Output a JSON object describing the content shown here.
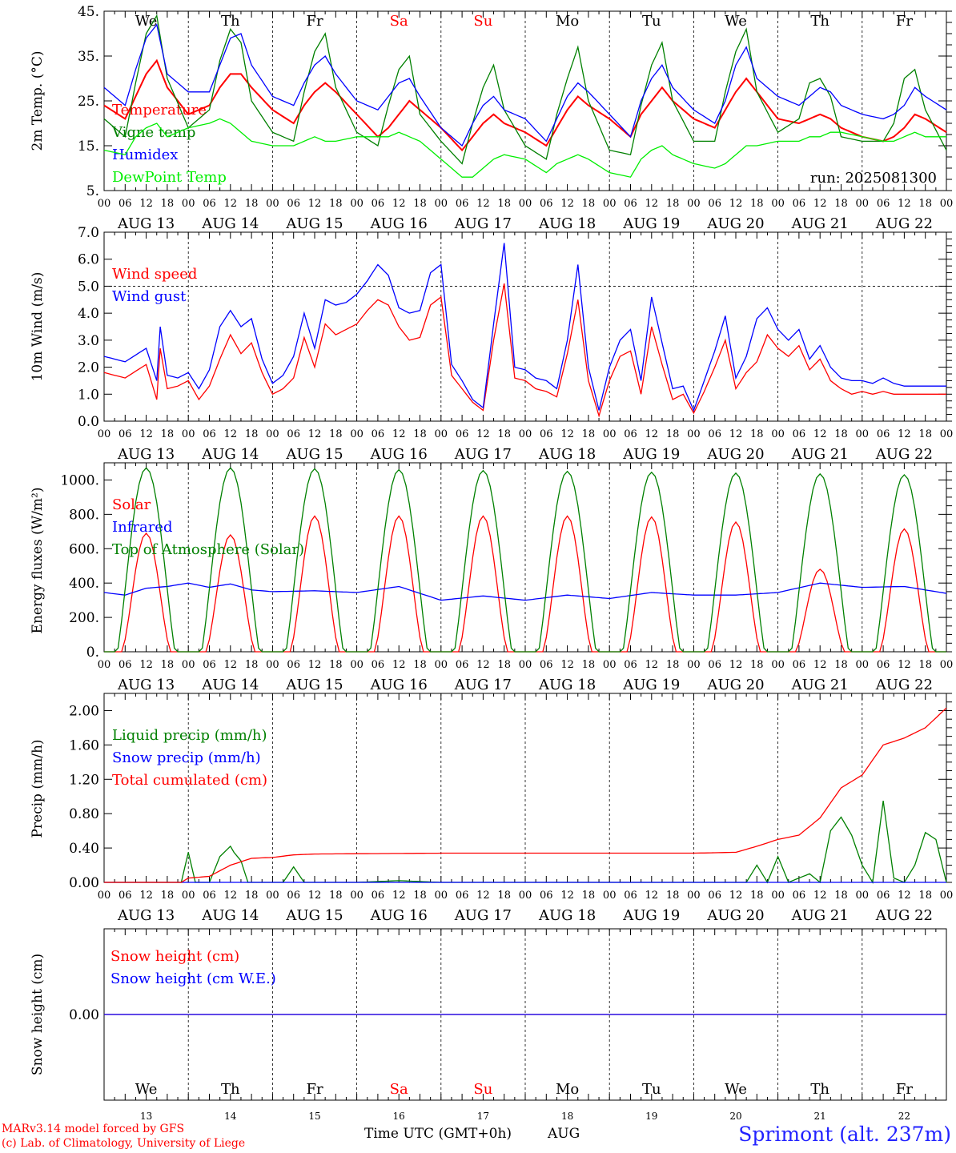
{
  "run_label": "run: 2025081300",
  "footer": {
    "model_line": "MARv3.14 model forced by GFS",
    "credit_line": "(c) Lab. of Climatology, University of Liege",
    "xaxis_title": "Time UTC (GMT+0h)",
    "xaxis_month": "AUG",
    "station": "Sprimont (alt. 237m)"
  },
  "days": {
    "weekdays": [
      "We",
      "Th",
      "Fr",
      "Sa",
      "Su",
      "Mo",
      "Tu",
      "We",
      "Th",
      "Fr"
    ],
    "weekend_flags": [
      false,
      false,
      false,
      true,
      true,
      false,
      false,
      false,
      false,
      false
    ],
    "dates": [
      "AUG 13",
      "AUG 14",
      "AUG 15",
      "AUG 16",
      "AUG 17",
      "AUG 18",
      "AUG 19",
      "AUG 20",
      "AUG 21",
      "AUG 22"
    ],
    "day_numbers": [
      "13",
      "14",
      "15",
      "16",
      "17",
      "18",
      "19",
      "20",
      "21",
      "22"
    ],
    "hour_ticks": [
      "00",
      "06",
      "12",
      "18"
    ],
    "final_hour": "00"
  },
  "colors": {
    "red": "#ff0000",
    "green": "#008000",
    "blue": "#0000ff",
    "lightgreen": "#00ee00",
    "weekend": "#ff0000"
  },
  "chart_data": [
    {
      "type": "line",
      "ylabel": "2m Temp. (°C)",
      "ylim": [
        5,
        45
      ],
      "ytick_labels": [
        "5.",
        "15.",
        "25.",
        "35.",
        "45."
      ],
      "yticks": [
        5,
        15,
        25,
        35,
        45
      ],
      "legend_position": "left",
      "x_hours": [
        0,
        6,
        9,
        12,
        15,
        18,
        24,
        30,
        33,
        36,
        39,
        42,
        48,
        54,
        57,
        60,
        63,
        66,
        72,
        78,
        81,
        84,
        87,
        90,
        96,
        102,
        105,
        108,
        111,
        114,
        120,
        126,
        129,
        132,
        135,
        138,
        144,
        150,
        153,
        156,
        159,
        162,
        168,
        174,
        177,
        180,
        183,
        186,
        192,
        198,
        201,
        204,
        207,
        210,
        216,
        222,
        225,
        228,
        231,
        234,
        240
      ],
      "series": [
        {
          "name": "Temperature",
          "color": "red",
          "values": [
            24,
            21,
            26,
            31,
            34,
            28,
            22,
            24,
            28,
            31,
            31,
            28,
            23,
            20,
            24,
            27,
            29,
            27,
            22,
            17,
            19,
            22,
            25,
            23,
            19,
            14,
            17,
            20,
            22,
            20,
            18,
            15,
            19,
            23,
            26,
            24,
            21,
            17,
            22,
            25,
            28,
            25,
            21,
            19,
            23,
            27,
            30,
            27,
            21,
            20,
            21,
            22,
            21,
            19,
            17,
            16,
            17,
            19,
            22,
            21,
            18
          ]
        },
        {
          "name": "Vigne temp",
          "color": "green",
          "values": [
            21,
            17,
            29,
            40,
            44,
            30,
            19,
            23,
            34,
            41,
            38,
            25,
            18,
            16,
            27,
            36,
            40,
            28,
            18,
            15,
            24,
            32,
            35,
            22,
            16,
            11,
            20,
            28,
            33,
            23,
            15,
            12,
            22,
            30,
            37,
            25,
            14,
            13,
            24,
            33,
            38,
            25,
            16,
            16,
            27,
            36,
            41,
            27,
            18,
            21,
            29,
            30,
            26,
            17,
            16,
            16,
            20,
            30,
            32,
            23,
            14
          ]
        },
        {
          "name": "Humidex",
          "color": "blue",
          "values": [
            28,
            24,
            32,
            39,
            42,
            31,
            27,
            27,
            33,
            39,
            40,
            33,
            26,
            24,
            29,
            33,
            35,
            31,
            25,
            23,
            26,
            29,
            30,
            26,
            19,
            15,
            20,
            24,
            26,
            23,
            21,
            16,
            21,
            26,
            29,
            27,
            22,
            17,
            25,
            30,
            33,
            28,
            23,
            20,
            25,
            33,
            37,
            30,
            26,
            24,
            26,
            28,
            27,
            24,
            22,
            21,
            22,
            24,
            28,
            26,
            23
          ]
        },
        {
          "name": "DewPoint Temp",
          "color": "lightgreen",
          "values": [
            14,
            13,
            17,
            19,
            20,
            17,
            19,
            20,
            21,
            20,
            18,
            16,
            15,
            15,
            16,
            17,
            16,
            16,
            17,
            17,
            17,
            18,
            17,
            16,
            12,
            8,
            8,
            10,
            12,
            13,
            12,
            9,
            11,
            12,
            13,
            12,
            9,
            8,
            12,
            14,
            15,
            13,
            11,
            10,
            11,
            13,
            15,
            15,
            16,
            16,
            17,
            17,
            18,
            18,
            17,
            16,
            16,
            17,
            18,
            17,
            17
          ]
        }
      ]
    },
    {
      "type": "line",
      "ylabel": "10m Wind (m/s)",
      "ylim": [
        0,
        7
      ],
      "ytick_labels": [
        "0.0",
        "1.0",
        "2.0",
        "3.0",
        "4.0",
        "5.0",
        "6.0",
        "7.0"
      ],
      "yticks": [
        0,
        1,
        2,
        3,
        4,
        5,
        6,
        7
      ],
      "reference_line": 5,
      "legend_position": "left",
      "x_hours": [
        0,
        6,
        12,
        15,
        16,
        18,
        21,
        24,
        27,
        30,
        33,
        36,
        39,
        42,
        45,
        48,
        51,
        54,
        57,
        60,
        63,
        66,
        69,
        72,
        75,
        78,
        81,
        84,
        87,
        90,
        93,
        96,
        99,
        102,
        105,
        108,
        111,
        114,
        117,
        120,
        123,
        126,
        129,
        132,
        135,
        138,
        141,
        144,
        147,
        150,
        153,
        156,
        159,
        162,
        165,
        168,
        171,
        174,
        177,
        180,
        183,
        186,
        189,
        192,
        195,
        198,
        201,
        204,
        207,
        210,
        213,
        216,
        219,
        222,
        225,
        228,
        231,
        234,
        237,
        240
      ],
      "series": [
        {
          "name": "Wind speed",
          "color": "red",
          "values": [
            1.8,
            1.6,
            2.1,
            0.8,
            2.7,
            1.2,
            1.3,
            1.5,
            0.8,
            1.3,
            2.3,
            3.2,
            2.5,
            2.9,
            1.8,
            1.0,
            1.2,
            1.6,
            3.1,
            2.0,
            3.6,
            3.2,
            3.4,
            3.6,
            4.1,
            4.5,
            4.3,
            3.5,
            3.0,
            3.1,
            4.3,
            4.6,
            1.7,
            1.2,
            0.7,
            0.4,
            3.0,
            5.1,
            1.6,
            1.5,
            1.2,
            1.1,
            0.9,
            2.5,
            4.5,
            1.5,
            0.2,
            1.5,
            2.4,
            2.6,
            1.0,
            3.5,
            2.1,
            0.8,
            1.0,
            0.3,
            1.1,
            2.0,
            3.0,
            1.2,
            1.8,
            2.2,
            3.2,
            2.7,
            2.4,
            2.8,
            1.9,
            2.3,
            1.5,
            1.2,
            1.0,
            1.1,
            1.0,
            1.1,
            1.0,
            1.0,
            1.0,
            1.0,
            1.0,
            1.0
          ]
        },
        {
          "name": "Wind gust",
          "color": "blue",
          "values": [
            2.4,
            2.2,
            2.7,
            1.5,
            3.5,
            1.7,
            1.6,
            1.8,
            1.2,
            1.9,
            3.5,
            4.1,
            3.5,
            3.8,
            2.3,
            1.4,
            1.7,
            2.4,
            4.0,
            2.7,
            4.5,
            4.3,
            4.4,
            4.7,
            5.2,
            5.8,
            5.4,
            4.2,
            4.0,
            4.1,
            5.5,
            5.8,
            2.1,
            1.5,
            0.8,
            0.5,
            3.6,
            6.6,
            2.0,
            1.9,
            1.6,
            1.5,
            1.2,
            3.0,
            5.8,
            2.0,
            0.4,
            2.0,
            3.0,
            3.4,
            1.5,
            4.6,
            2.9,
            1.2,
            1.3,
            0.4,
            1.5,
            2.6,
            3.9,
            1.6,
            2.4,
            3.8,
            4.2,
            3.4,
            3.0,
            3.4,
            2.3,
            2.8,
            2.0,
            1.6,
            1.5,
            1.5,
            1.4,
            1.6,
            1.4,
            1.3,
            1.3,
            1.3,
            1.3,
            1.3
          ]
        }
      ]
    },
    {
      "type": "line",
      "ylabel": "Energy fluxes (W/m²)",
      "ylim": [
        0,
        1100
      ],
      "ytick_labels": [
        "0.",
        "200.",
        "400.",
        "600.",
        "800.",
        "1000."
      ],
      "yticks": [
        0,
        200,
        400,
        600,
        800,
        1000
      ],
      "legend_position": "left",
      "series": [
        {
          "name": "Solar",
          "color": "red",
          "daily_peaks": [
            690,
            680,
            790,
            790,
            790,
            790,
            785,
            755,
            480,
            715
          ]
        },
        {
          "name": "Infrared",
          "color": "blue",
          "x_hours": [
            0,
            6,
            12,
            18,
            24,
            30,
            36,
            42,
            48,
            60,
            72,
            84,
            96,
            108,
            120,
            132,
            144,
            156,
            168,
            180,
            192,
            204,
            216,
            228,
            240
          ],
          "values": [
            345,
            330,
            370,
            380,
            400,
            375,
            395,
            360,
            350,
            355,
            345,
            380,
            300,
            325,
            300,
            330,
            310,
            345,
            330,
            330,
            345,
            400,
            375,
            380,
            340
          ]
        },
        {
          "name": "Top of Atmosphere (Solar)",
          "color": "green",
          "daily_peaks": [
            1070,
            1070,
            1065,
            1060,
            1055,
            1050,
            1045,
            1040,
            1035,
            1030
          ]
        }
      ]
    },
    {
      "type": "line",
      "ylabel": "Precip (mm/h)",
      "ylim": [
        0,
        2.2
      ],
      "ytick_labels": [
        "0.00",
        "0.40",
        "0.80",
        "1.20",
        "1.60",
        "2.00"
      ],
      "yticks": [
        0,
        0.4,
        0.8,
        1.2,
        1.6,
        2.0
      ],
      "legend_position": "left",
      "series": [
        {
          "name": "Liquid precip (mm/h)",
          "color": "green",
          "x_hours": [
            0,
            22,
            24,
            26,
            30,
            33,
            36,
            37,
            39,
            41,
            45,
            48,
            51,
            54,
            57,
            60,
            72,
            84,
            96,
            180,
            183,
            186,
            189,
            192,
            195,
            198,
            201,
            204,
            207,
            210,
            213,
            216,
            219,
            222,
            225,
            228,
            231,
            234,
            237,
            240
          ],
          "values": [
            0,
            0,
            0.35,
            0,
            0,
            0.3,
            0.42,
            0.35,
            0.25,
            0,
            0,
            0,
            0,
            0.18,
            0,
            0,
            0,
            0.02,
            0,
            0,
            0,
            0.2,
            0,
            0.3,
            0,
            0.05,
            0.1,
            0,
            0.6,
            0.76,
            0.55,
            0.2,
            0,
            0.95,
            0.05,
            0,
            0.2,
            0.58,
            0.5,
            0
          ]
        },
        {
          "name": "Snow precip (mm/h)",
          "color": "blue",
          "x_hours": [
            0,
            240
          ],
          "values": [
            0,
            0
          ]
        },
        {
          "name": "Total cumulated (cm)",
          "color": "red",
          "x_hours": [
            0,
            22,
            24,
            30,
            36,
            42,
            48,
            54,
            60,
            96,
            120,
            144,
            168,
            180,
            186,
            192,
            198,
            204,
            210,
            216,
            222,
            228,
            234,
            240
          ],
          "values": [
            0,
            0,
            0.05,
            0.07,
            0.2,
            0.28,
            0.29,
            0.32,
            0.33,
            0.34,
            0.34,
            0.34,
            0.34,
            0.35,
            0.42,
            0.5,
            0.55,
            0.75,
            1.1,
            1.25,
            1.6,
            1.68,
            1.8,
            2.03
          ]
        }
      ]
    },
    {
      "type": "line",
      "ylabel": "Snow height (cm)",
      "ylim": [
        -1,
        1
      ],
      "ytick_labels": [
        "0.00"
      ],
      "yticks": [
        0
      ],
      "legend_position": "left",
      "series": [
        {
          "name": "Snow height (cm)",
          "color": "red",
          "x_hours": [
            0,
            240
          ],
          "values": [
            0,
            0
          ]
        },
        {
          "name": "Snow height (cm W.E.)",
          "color": "blue",
          "x_hours": [
            0,
            240
          ],
          "values": [
            0,
            0
          ]
        }
      ]
    }
  ]
}
